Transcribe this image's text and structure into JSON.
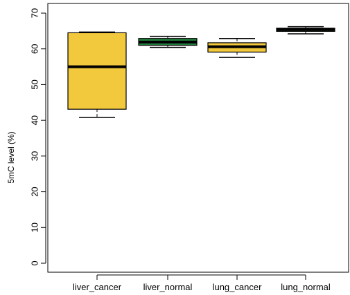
{
  "chart_data": {
    "type": "boxplot",
    "title": "",
    "xlabel": "",
    "ylabel": "5mC level (%)",
    "ylim": [
      0,
      70
    ],
    "yticks": [
      0,
      10,
      20,
      30,
      40,
      50,
      60,
      70
    ],
    "grid": false,
    "categories": [
      "liver_cancer",
      "liver_normal",
      "lung_cancer",
      "lung_normal"
    ],
    "boxes": [
      {
        "category": "liver_cancer",
        "min": 40.8,
        "q1": 43.1,
        "median": 55.0,
        "q3": 64.5,
        "max": 64.7,
        "color": "#f2c83c"
      },
      {
        "category": "liver_normal",
        "min": 60.4,
        "q1": 61.0,
        "median": 61.9,
        "q3": 62.9,
        "max": 63.5,
        "color": "#23833f"
      },
      {
        "category": "lung_cancer",
        "min": 57.6,
        "q1": 59.1,
        "median": 60.6,
        "q3": 61.7,
        "max": 62.9,
        "color": "#f2c83c"
      },
      {
        "category": "lung_normal",
        "min": 64.2,
        "q1": 64.9,
        "median": 65.4,
        "q3": 65.8,
        "max": 66.2,
        "color": "#23833f"
      }
    ]
  }
}
